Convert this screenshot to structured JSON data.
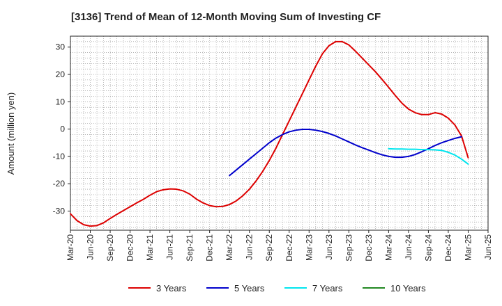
{
  "chart_data": {
    "type": "line",
    "title": "[3136]  Trend of Mean of 12-Month Moving Sum of Investing CF",
    "xlabel": "",
    "ylabel": "Amount (million yen)",
    "ylim": [
      -37,
      34
    ],
    "yticks": [
      30,
      20,
      10,
      0,
      -10,
      -20,
      -30
    ],
    "x_tick_labels": [
      "Mar-20",
      "Jun-20",
      "Sep-20",
      "Dec-20",
      "Mar-21",
      "Jun-21",
      "Sep-21",
      "Dec-21",
      "Mar-22",
      "Jun-22",
      "Sep-22",
      "Dec-22",
      "Mar-23",
      "Jun-23",
      "Sep-23",
      "Dec-23",
      "Mar-24",
      "Jun-24",
      "Sep-24",
      "Dec-24",
      "Mar-25",
      "Jun-25"
    ],
    "x_index_unit": "months since Mar-20",
    "grid": true,
    "legend_position": "bottom",
    "series": [
      {
        "name": "3 Years",
        "color": "#dd0000",
        "points": [
          [
            0,
            -31
          ],
          [
            1,
            -33.5
          ],
          [
            2,
            -35
          ],
          [
            3,
            -35.5
          ],
          [
            4,
            -35.3
          ],
          [
            5,
            -34.3
          ],
          [
            6,
            -32.7
          ],
          [
            7,
            -31.2
          ],
          [
            8,
            -29.8
          ],
          [
            9,
            -28.4
          ],
          [
            10,
            -27
          ],
          [
            11,
            -25.7
          ],
          [
            12,
            -24.2
          ],
          [
            13,
            -22.9
          ],
          [
            14,
            -22.2
          ],
          [
            15,
            -21.9
          ],
          [
            16,
            -22
          ],
          [
            17,
            -22.6
          ],
          [
            18,
            -23.8
          ],
          [
            19,
            -25.6
          ],
          [
            20,
            -27
          ],
          [
            21,
            -28
          ],
          [
            22,
            -28.4
          ],
          [
            23,
            -28.3
          ],
          [
            24,
            -27.6
          ],
          [
            25,
            -26.3
          ],
          [
            26,
            -24.4
          ],
          [
            27,
            -22
          ],
          [
            28,
            -19
          ],
          [
            29,
            -15.5
          ],
          [
            30,
            -11.5
          ],
          [
            31,
            -7
          ],
          [
            32,
            -2
          ],
          [
            33,
            3
          ],
          [
            34,
            8
          ],
          [
            35,
            13
          ],
          [
            36,
            18
          ],
          [
            37,
            23
          ],
          [
            38,
            27.5
          ],
          [
            39,
            30.5
          ],
          [
            40,
            32
          ],
          [
            41,
            32
          ],
          [
            42,
            30.8
          ],
          [
            43,
            28.5
          ],
          [
            44,
            26
          ],
          [
            45,
            23.5
          ],
          [
            46,
            21
          ],
          [
            47,
            18.2
          ],
          [
            48,
            15.3
          ],
          [
            49,
            12.3
          ],
          [
            50,
            9.5
          ],
          [
            51,
            7.3
          ],
          [
            52,
            6
          ],
          [
            53,
            5.3
          ],
          [
            54,
            5.3
          ],
          [
            55,
            6
          ],
          [
            56,
            5.5
          ],
          [
            57,
            4
          ],
          [
            58,
            1.5
          ],
          [
            59,
            -2.5
          ],
          [
            60,
            -10.5
          ]
        ]
      },
      {
        "name": "5 Years",
        "color": "#0000cc",
        "points": [
          [
            24,
            -17
          ],
          [
            25,
            -15
          ],
          [
            26,
            -13
          ],
          [
            27,
            -11
          ],
          [
            28,
            -9
          ],
          [
            29,
            -7
          ],
          [
            30,
            -5
          ],
          [
            31,
            -3.3
          ],
          [
            32,
            -2
          ],
          [
            33,
            -1
          ],
          [
            34,
            -0.4
          ],
          [
            35,
            -0.1
          ],
          [
            36,
            -0.1
          ],
          [
            37,
            -0.4
          ],
          [
            38,
            -0.9
          ],
          [
            39,
            -1.6
          ],
          [
            40,
            -2.5
          ],
          [
            41,
            -3.6
          ],
          [
            42,
            -4.7
          ],
          [
            43,
            -5.8
          ],
          [
            44,
            -6.8
          ],
          [
            45,
            -7.7
          ],
          [
            46,
            -8.6
          ],
          [
            47,
            -9.4
          ],
          [
            48,
            -10
          ],
          [
            49,
            -10.3
          ],
          [
            50,
            -10.3
          ],
          [
            51,
            -10
          ],
          [
            52,
            -9.3
          ],
          [
            53,
            -8.3
          ],
          [
            54,
            -7.2
          ],
          [
            55,
            -6
          ],
          [
            56,
            -5
          ],
          [
            57,
            -4.2
          ],
          [
            58,
            -3.4
          ],
          [
            59,
            -2.8
          ]
        ]
      },
      {
        "name": "7 Years",
        "color": "#00e5ee",
        "points": [
          [
            48,
            -7.2
          ],
          [
            49,
            -7.3
          ],
          [
            50,
            -7.3
          ],
          [
            51,
            -7.4
          ],
          [
            52,
            -7.4
          ],
          [
            53,
            -7.5
          ],
          [
            54,
            -7.5
          ],
          [
            55,
            -7.6
          ],
          [
            56,
            -7.8
          ],
          [
            57,
            -8.5
          ],
          [
            58,
            -9.5
          ],
          [
            59,
            -11
          ],
          [
            60,
            -12.8
          ]
        ]
      },
      {
        "name": "10 Years",
        "color": "#228822",
        "points": []
      }
    ]
  }
}
